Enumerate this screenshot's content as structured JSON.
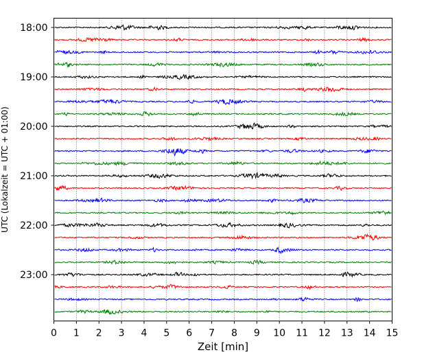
{
  "chart_data": {
    "type": "line",
    "title": "",
    "xlabel": "Zeit  [min]",
    "ylabel": "UTC (Lokalzeit = UTC + 01:00)",
    "xlim": [
      0,
      15
    ],
    "x_ticks": [
      0,
      1,
      2,
      3,
      4,
      5,
      6,
      7,
      8,
      9,
      10,
      11,
      12,
      13,
      14,
      15
    ],
    "y_ticks": [
      "18:00",
      "19:00",
      "20:00",
      "21:00",
      "22:00",
      "23:00"
    ],
    "grid": "vertical dotted",
    "trace_interval_min": 15,
    "trace_start": "18:00",
    "trace_end": "23:45",
    "trace_colors": [
      "#000000",
      "#ff0000",
      "#0000ff",
      "#008000"
    ],
    "trace_count": 24
  }
}
